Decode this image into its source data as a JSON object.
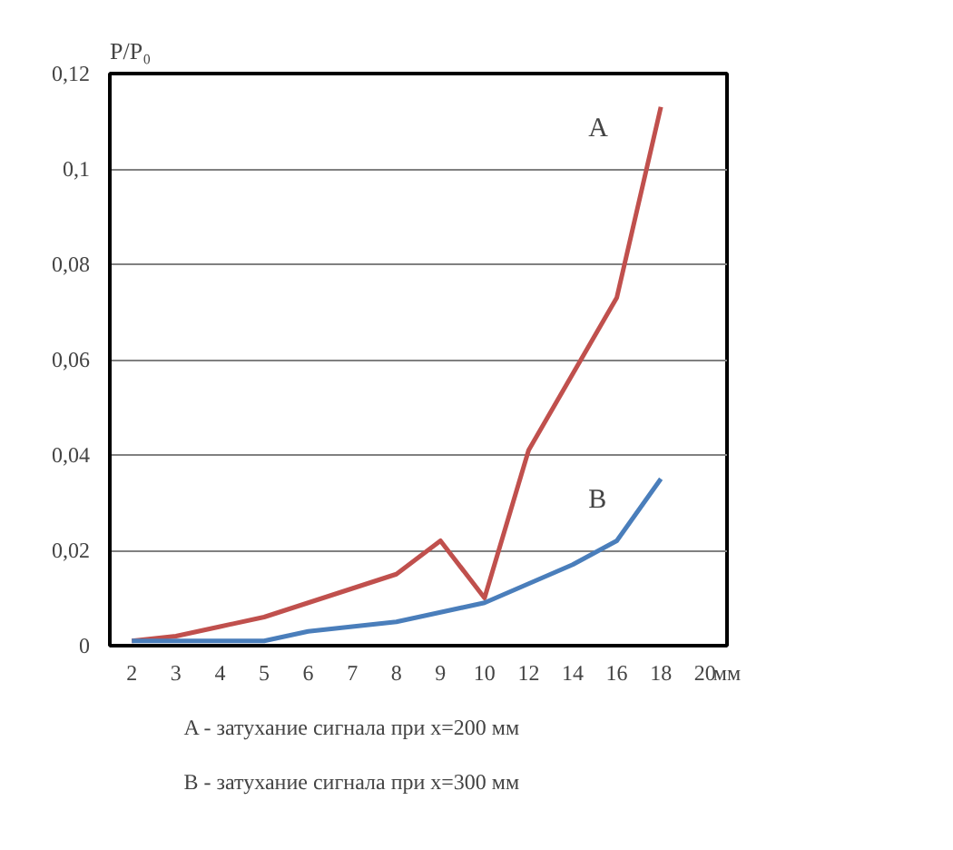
{
  "chart_data": {
    "type": "line",
    "ylabel": "P/P₀",
    "xlabel": "мм",
    "categories": [
      "2",
      "3",
      "4",
      "5",
      "6",
      "7",
      "8",
      "9",
      "10",
      "12",
      "14",
      "16",
      "18",
      "20"
    ],
    "series": [
      {
        "name": "A",
        "color": "#c0504d",
        "values": [
          0.001,
          0.002,
          0.004,
          0.006,
          0.009,
          0.012,
          0.015,
          0.022,
          0.01,
          0.041,
          0.057,
          0.073,
          0.113,
          null
        ]
      },
      {
        "name": "B",
        "color": "#4a7ebb",
        "values": [
          0.001,
          0.001,
          0.001,
          0.001,
          0.003,
          0.004,
          0.005,
          0.007,
          0.009,
          0.013,
          0.017,
          0.022,
          0.035,
          null
        ]
      }
    ],
    "ylim": [
      0,
      0.12
    ],
    "yticks": [
      0,
      {
        "value": 0.02,
        "label": "0,02"
      },
      {
        "value": 0.04,
        "label": "0,04"
      },
      {
        "value": 0.06,
        "label": "0,06"
      },
      {
        "value": 0.08,
        "label": "0,08"
      },
      {
        "value": 0.1,
        "label": "0,1"
      },
      {
        "value": 0.12,
        "label": "0,12"
      }
    ],
    "grid": "y",
    "marker": "none",
    "line_style": "solid",
    "annotations": [
      "A - затухание сигнала при x=200 мм",
      "B - затухание сигнала при x=300 мм"
    ]
  }
}
